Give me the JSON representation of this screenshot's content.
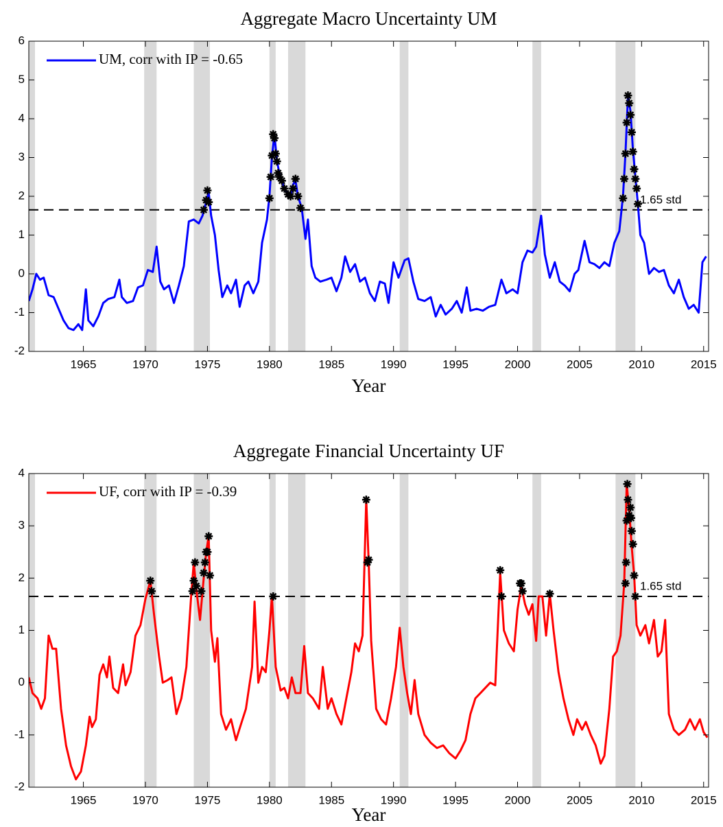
{
  "chart_data": [
    {
      "type": "line",
      "title": "Aggregate Macro Uncertainty UM",
      "xlabel": "Year",
      "xlim": [
        1960.6,
        2015.4
      ],
      "xticks": [
        1965,
        1970,
        1975,
        1980,
        1985,
        1990,
        1995,
        2000,
        2005,
        2010,
        2015
      ],
      "ylim": [
        -2,
        6
      ],
      "yticks": [
        -2,
        -1,
        0,
        1,
        2,
        3,
        4,
        5,
        6
      ],
      "legend": "upper left",
      "threshold": 1.65,
      "threshold_label": "1.65 std",
      "threshold_label_color": "#ff0000",
      "shaded_regions": [
        [
          1960.3,
          1961.1
        ],
        [
          1969.9,
          1970.9
        ],
        [
          1973.9,
          1975.2
        ],
        [
          1980.0,
          1980.5
        ],
        [
          1981.5,
          1982.9
        ],
        [
          1990.5,
          1991.2
        ],
        [
          2001.2,
          2001.9
        ],
        [
          2007.9,
          2009.5
        ]
      ],
      "shade_color": "#d9d9d9",
      "x": [
        1960.6,
        1960.9,
        1961.2,
        1961.5,
        1961.8,
        1962.2,
        1962.6,
        1963.0,
        1963.4,
        1963.8,
        1964.2,
        1964.6,
        1964.9,
        1965.2,
        1965.4,
        1965.8,
        1966.2,
        1966.6,
        1967.0,
        1967.5,
        1967.9,
        1968.1,
        1968.5,
        1969.0,
        1969.4,
        1969.8,
        1970.2,
        1970.6,
        1970.9,
        1971.2,
        1971.5,
        1971.9,
        1972.3,
        1972.7,
        1973.1,
        1973.5,
        1973.9,
        1974.3,
        1974.6,
        1974.9,
        1975.1,
        1975.3,
        1975.6,
        1975.9,
        1976.2,
        1976.6,
        1976.9,
        1977.3,
        1977.6,
        1978.0,
        1978.3,
        1978.7,
        1979.1,
        1979.4,
        1979.8,
        1980.0,
        1980.2,
        1980.4,
        1980.6,
        1980.8,
        1981.1,
        1981.4,
        1981.7,
        1981.9,
        1982.1,
        1982.3,
        1982.6,
        1982.9,
        1983.1,
        1983.4,
        1983.7,
        1984.1,
        1984.6,
        1985.0,
        1985.4,
        1985.8,
        1986.1,
        1986.5,
        1986.9,
        1987.3,
        1987.7,
        1988.1,
        1988.5,
        1988.9,
        1989.3,
        1989.6,
        1990.0,
        1990.4,
        1990.9,
        1991.2,
        1991.6,
        1992.0,
        1992.5,
        1993.0,
        1993.4,
        1993.8,
        1994.2,
        1994.7,
        1995.1,
        1995.5,
        1995.9,
        1996.2,
        1996.7,
        1997.2,
        1997.7,
        1998.2,
        1998.7,
        1999.1,
        1999.6,
        2000.0,
        2000.4,
        2000.8,
        2001.2,
        2001.5,
        2001.9,
        2002.2,
        2002.6,
        2003.0,
        2003.4,
        2003.8,
        2004.2,
        2004.6,
        2004.9,
        2005.4,
        2005.8,
        2006.2,
        2006.6,
        2007.0,
        2007.4,
        2007.8,
        2008.2,
        2008.5,
        2008.7,
        2008.9,
        2009.1,
        2009.3,
        2009.5,
        2009.7,
        2009.9,
        2010.2,
        2010.6,
        2011.0,
        2011.4,
        2011.8,
        2012.2,
        2012.6,
        2013.0,
        2013.4,
        2013.8,
        2014.2,
        2014.6,
        2014.9,
        2015.2
      ],
      "series": [
        {
          "name": "UM, corr with IP = -0.65",
          "color": "#0000ff",
          "values": [
            -0.7,
            -0.4,
            0.0,
            -0.15,
            -0.1,
            -0.55,
            -0.6,
            -0.9,
            -1.2,
            -1.4,
            -1.45,
            -1.3,
            -1.45,
            -0.4,
            -1.2,
            -1.35,
            -1.1,
            -0.75,
            -0.65,
            -0.6,
            -0.15,
            -0.6,
            -0.75,
            -0.7,
            -0.35,
            -0.3,
            0.1,
            0.05,
            0.7,
            -0.2,
            -0.4,
            -0.3,
            -0.75,
            -0.3,
            0.2,
            1.35,
            1.4,
            1.3,
            1.5,
            1.85,
            2.1,
            1.5,
            1.0,
            0.1,
            -0.6,
            -0.3,
            -0.5,
            -0.15,
            -0.85,
            -0.3,
            -0.2,
            -0.5,
            -0.2,
            0.8,
            1.4,
            2.0,
            3.0,
            3.6,
            2.9,
            2.6,
            2.3,
            2.1,
            2.0,
            2.3,
            2.4,
            2.0,
            1.7,
            0.9,
            1.4,
            0.2,
            -0.1,
            -0.2,
            -0.15,
            -0.1,
            -0.45,
            -0.1,
            0.45,
            0.05,
            0.25,
            -0.2,
            -0.1,
            -0.5,
            -0.7,
            -0.2,
            -0.25,
            -0.75,
            0.3,
            -0.1,
            0.35,
            0.4,
            -0.2,
            -0.65,
            -0.7,
            -0.6,
            -1.1,
            -0.8,
            -1.05,
            -0.9,
            -0.7,
            -1.0,
            -0.35,
            -0.95,
            -0.9,
            -0.95,
            -0.85,
            -0.8,
            -0.15,
            -0.5,
            -0.4,
            -0.5,
            0.3,
            0.6,
            0.55,
            0.7,
            1.5,
            0.5,
            -0.1,
            0.3,
            -0.2,
            -0.3,
            -0.45,
            0.0,
            0.1,
            0.85,
            0.3,
            0.25,
            0.15,
            0.3,
            0.2,
            0.8,
            1.1,
            2.0,
            3.1,
            4.6,
            4.2,
            3.2,
            2.5,
            1.8,
            1.0,
            0.8,
            0.0,
            0.15,
            0.05,
            0.1,
            -0.3,
            -0.5,
            -0.15,
            -0.6,
            -0.9,
            -0.8,
            -1.0,
            0.3,
            0.45
          ]
        }
      ],
      "exceedances": {
        "x": [
          1974.7,
          1974.9,
          1975.0,
          1975.1,
          1980.0,
          1980.1,
          1980.2,
          1980.3,
          1980.4,
          1980.5,
          1980.6,
          1980.7,
          1980.8,
          1981.0,
          1981.2,
          1981.5,
          1981.7,
          1981.9,
          1982.1,
          1982.3,
          1982.5,
          2008.5,
          2008.6,
          2008.7,
          2008.8,
          2008.9,
          2009.0,
          2009.1,
          2009.2,
          2009.3,
          2009.4,
          2009.5,
          2009.6,
          2009.7
        ],
        "y": [
          1.65,
          1.9,
          2.15,
          1.85,
          1.95,
          2.5,
          3.05,
          3.6,
          3.5,
          3.1,
          2.9,
          2.6,
          2.5,
          2.4,
          2.2,
          2.05,
          2.0,
          2.2,
          2.45,
          2.0,
          1.7,
          1.95,
          2.45,
          3.1,
          3.9,
          4.6,
          4.4,
          4.1,
          3.65,
          3.15,
          2.7,
          2.45,
          2.2,
          1.8
        ]
      }
    },
    {
      "type": "line",
      "title": "Aggregate Financial Uncertainty UF",
      "xlabel": "Year",
      "xlim": [
        1960.6,
        2015.4
      ],
      "xticks": [
        1965,
        1970,
        1975,
        1980,
        1985,
        1990,
        1995,
        2000,
        2005,
        2010,
        2015
      ],
      "ylim": [
        -2,
        4
      ],
      "yticks": [
        -2,
        -1,
        0,
        1,
        2,
        3,
        4
      ],
      "legend": "upper left",
      "threshold": 1.65,
      "threshold_label": "1.65 std",
      "threshold_label_color": "#ff0000",
      "shaded_regions": [
        [
          1960.3,
          1961.1
        ],
        [
          1969.9,
          1970.9
        ],
        [
          1973.9,
          1975.2
        ],
        [
          1980.0,
          1980.5
        ],
        [
          1981.5,
          1982.9
        ],
        [
          1990.5,
          1991.2
        ],
        [
          2001.2,
          2001.9
        ],
        [
          2007.9,
          2009.5
        ]
      ],
      "shade_color": "#d9d9d9",
      "x": [
        1960.6,
        1960.9,
        1961.3,
        1961.6,
        1961.9,
        1962.2,
        1962.5,
        1962.8,
        1963.2,
        1963.6,
        1964.0,
        1964.4,
        1964.8,
        1965.2,
        1965.5,
        1965.7,
        1966.0,
        1966.3,
        1966.6,
        1966.9,
        1967.1,
        1967.4,
        1967.8,
        1968.2,
        1968.4,
        1968.8,
        1969.2,
        1969.6,
        1970.0,
        1970.4,
        1970.7,
        1971.1,
        1971.4,
        1971.8,
        1972.1,
        1972.5,
        1972.9,
        1973.3,
        1973.7,
        1973.9,
        1974.1,
        1974.4,
        1974.7,
        1974.9,
        1975.1,
        1975.3,
        1975.6,
        1975.8,
        1976.1,
        1976.5,
        1976.9,
        1977.3,
        1977.7,
        1978.1,
        1978.6,
        1978.8,
        1979.1,
        1979.4,
        1979.7,
        1980.0,
        1980.2,
        1980.5,
        1980.9,
        1981.2,
        1981.5,
        1981.8,
        1982.1,
        1982.5,
        1982.8,
        1983.1,
        1983.5,
        1984.0,
        1984.3,
        1984.7,
        1985.0,
        1985.4,
        1985.8,
        1986.2,
        1986.6,
        1986.9,
        1987.2,
        1987.5,
        1987.8,
        1988.0,
        1988.2,
        1988.6,
        1989.0,
        1989.4,
        1989.8,
        1990.2,
        1990.5,
        1990.8,
        1991.1,
        1991.4,
        1991.7,
        1992.0,
        1992.5,
        1993.0,
        1993.5,
        1994.0,
        1994.5,
        1995.0,
        1995.4,
        1995.8,
        1996.2,
        1996.6,
        1997.0,
        1997.4,
        1997.8,
        1998.2,
        1998.6,
        1998.9,
        1999.3,
        1999.7,
        2000.0,
        2000.3,
        2000.6,
        2000.9,
        2001.2,
        2001.5,
        2001.7,
        2002.0,
        2002.3,
        2002.6,
        2002.9,
        2003.3,
        2003.7,
        2004.1,
        2004.5,
        2004.8,
        2005.2,
        2005.5,
        2005.9,
        2006.3,
        2006.7,
        2007.0,
        2007.4,
        2007.7,
        2008.0,
        2008.3,
        2008.6,
        2008.8,
        2009.0,
        2009.2,
        2009.4,
        2009.6,
        2009.9,
        2010.3,
        2010.6,
        2011.0,
        2011.3,
        2011.6,
        2011.9,
        2012.2,
        2012.6,
        2013.0,
        2013.5,
        2013.9,
        2014.3,
        2014.7,
        2015.0,
        2015.3
      ],
      "series": [
        {
          "name": "UF, corr with IP = -0.39",
          "color": "#ff0000",
          "values": [
            0.1,
            -0.2,
            -0.3,
            -0.5,
            -0.3,
            0.9,
            0.65,
            0.65,
            -0.5,
            -1.2,
            -1.6,
            -1.85,
            -1.7,
            -1.2,
            -0.65,
            -0.85,
            -0.7,
            0.15,
            0.35,
            0.1,
            0.5,
            -0.1,
            -0.2,
            0.35,
            -0.05,
            0.2,
            0.9,
            1.1,
            1.6,
            1.95,
            1.3,
            0.5,
            0.0,
            0.05,
            0.1,
            -0.6,
            -0.3,
            0.3,
            1.7,
            2.3,
            1.8,
            1.2,
            2.0,
            2.5,
            2.8,
            1.0,
            0.4,
            0.85,
            -0.6,
            -0.9,
            -0.7,
            -1.1,
            -0.8,
            -0.5,
            0.3,
            1.55,
            0.0,
            0.3,
            0.2,
            1.0,
            1.65,
            0.3,
            -0.15,
            -0.1,
            -0.3,
            0.1,
            -0.2,
            -0.2,
            0.7,
            -0.2,
            -0.3,
            -0.5,
            0.3,
            -0.5,
            -0.3,
            -0.6,
            -0.8,
            -0.3,
            0.2,
            0.75,
            0.6,
            0.9,
            3.5,
            2.3,
            0.8,
            -0.5,
            -0.7,
            -0.8,
            -0.3,
            0.3,
            1.05,
            0.3,
            -0.2,
            -0.6,
            0.05,
            -0.6,
            -1.0,
            -1.15,
            -1.25,
            -1.2,
            -1.35,
            -1.45,
            -1.3,
            -1.1,
            -0.6,
            -0.3,
            -0.2,
            -0.1,
            0.0,
            -0.05,
            2.1,
            1.0,
            0.75,
            0.6,
            1.4,
            1.85,
            1.5,
            1.3,
            1.5,
            0.8,
            1.65,
            1.65,
            0.9,
            1.7,
            1.0,
            0.2,
            -0.3,
            -0.7,
            -1.0,
            -0.7,
            -0.9,
            -0.75,
            -1.0,
            -1.2,
            -1.55,
            -1.4,
            -0.5,
            0.5,
            0.6,
            0.9,
            1.9,
            3.8,
            3.3,
            2.6,
            2.05,
            1.1,
            0.9,
            1.1,
            0.75,
            1.2,
            0.5,
            0.6,
            1.2,
            -0.6,
            -0.9,
            -1.0,
            -0.9,
            -0.7,
            -0.9,
            -0.7,
            -0.95,
            -1.05
          ]
        }
      ],
      "exceedances": {
        "x": [
          1970.4,
          1970.5,
          1973.8,
          1973.9,
          1974.0,
          1974.1,
          1974.5,
          1974.7,
          1974.8,
          1974.9,
          1975.0,
          1975.1,
          1975.2,
          1980.3,
          1987.8,
          1987.9,
          1988.0,
          1998.6,
          1998.7,
          2000.2,
          2000.3,
          2000.4,
          2002.6,
          2008.7,
          2008.75,
          2008.8,
          2008.85,
          2008.9,
          2009.0,
          2009.1,
          2009.15,
          2009.2,
          2009.3,
          2009.4,
          2009.5
        ],
        "y": [
          1.95,
          1.75,
          1.75,
          1.95,
          2.3,
          1.85,
          1.75,
          2.1,
          2.3,
          2.5,
          2.5,
          2.8,
          2.05,
          1.65,
          3.5,
          2.3,
          2.35,
          2.15,
          1.65,
          1.9,
          1.9,
          1.75,
          1.7,
          1.9,
          2.3,
          3.1,
          3.8,
          3.5,
          3.2,
          3.35,
          3.15,
          2.9,
          2.65,
          2.05,
          1.65
        ]
      }
    }
  ]
}
